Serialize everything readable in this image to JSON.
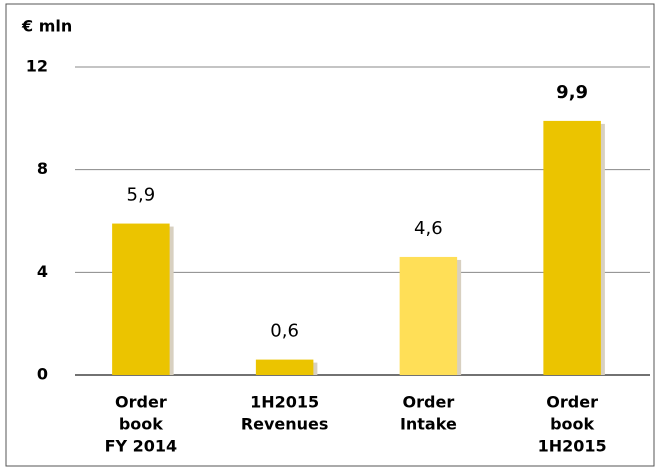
{
  "chart_data": {
    "type": "bar",
    "ylabel": "€ mln",
    "categories": [
      [
        "Order",
        "book",
        "FY 2014"
      ],
      [
        "1H2015",
        "Revenues"
      ],
      [
        "Order",
        "Intake"
      ],
      [
        "Order",
        "book",
        "1H2015"
      ]
    ],
    "values": [
      5.9,
      0.6,
      4.6,
      9.9
    ],
    "value_labels": [
      "5,9",
      "0,6",
      "4,6",
      "9,9"
    ],
    "colors": [
      "#ebc400",
      "#ebc400",
      "#ffdf57",
      "#ebc400"
    ],
    "ylim": [
      0,
      12
    ],
    "yticks": [
      0,
      4,
      8,
      12
    ],
    "grid": true
  }
}
